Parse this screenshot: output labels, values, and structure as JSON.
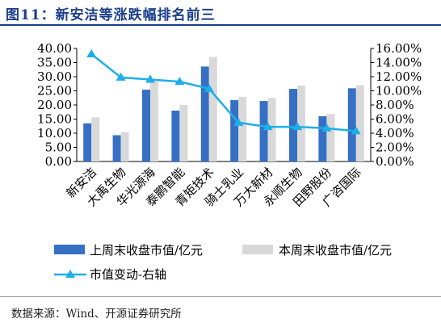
{
  "title": "图11：新安洁等涨跌幅排名前三",
  "source": "数据来源：Wind、开源证券研究所",
  "colors": {
    "bar_this_week": "#3570c4",
    "bar_last_week": "#d9d9d9",
    "line": "#1eaee8",
    "title": "#1a3e8c"
  },
  "chart_data": {
    "type": "bar",
    "categories": [
      "新安洁",
      "大禹生物",
      "华光源海",
      "泰鹏智能",
      "青矩技术",
      "骑士乳业",
      "万大新材",
      "永顺生物",
      "田野股份",
      "广咨国际"
    ],
    "series": [
      {
        "name": "上周末收盘市值/亿元",
        "type": "bar",
        "axis": "left",
        "values": [
          13.5,
          9.3,
          25.4,
          18.0,
          33.6,
          21.7,
          21.4,
          25.7,
          16.0,
          25.9
        ]
      },
      {
        "name": "本周末收盘市值/亿元",
        "type": "bar",
        "axis": "left",
        "values": [
          15.6,
          10.4,
          28.4,
          20.0,
          37.0,
          22.9,
          22.5,
          26.9,
          16.8,
          27.0
        ]
      },
      {
        "name": "市值变动-右轴",
        "type": "line",
        "axis": "right",
        "marker": "triangle",
        "values": [
          15.2,
          11.9,
          11.6,
          11.3,
          10.3,
          5.5,
          4.9,
          4.9,
          4.7,
          4.3
        ]
      }
    ],
    "y_left": {
      "ylim": [
        0,
        40
      ],
      "ticks": [
        "0.00",
        "5.00",
        "10.00",
        "15.00",
        "20.00",
        "25.00",
        "30.00",
        "35.00",
        "40.00"
      ]
    },
    "y_right": {
      "ylim": [
        0,
        16
      ],
      "ticks": [
        "0.00%",
        "2.00%",
        "4.00%",
        "6.00%",
        "8.00%",
        "10.00%",
        "12.00%",
        "14.00%",
        "16.00%"
      ]
    },
    "grid": false,
    "legend": {
      "placement": "bottom",
      "items": [
        "上周末收盘市值/亿元",
        "本周末收盘市值/亿元",
        "市值变动-右轴"
      ]
    }
  }
}
